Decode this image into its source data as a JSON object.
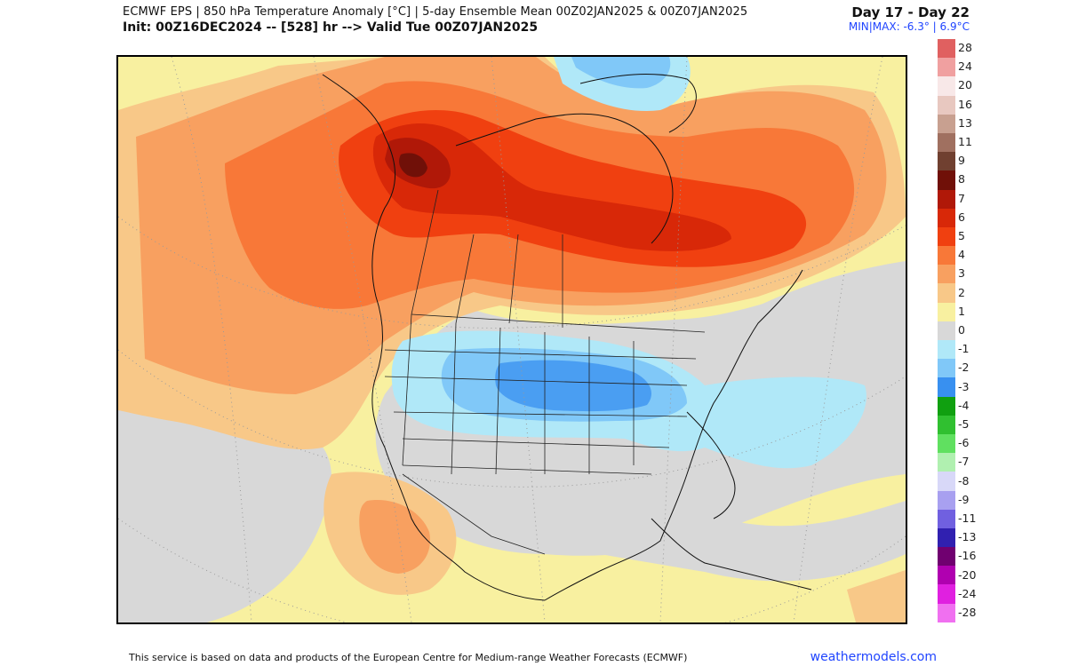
{
  "header": {
    "line1": "ECMWF EPS | 850 hPa Temperature Anomaly [°C] | 5-day Ensemble Mean 00Z02JAN2025 & 00Z07JAN2025",
    "line2": "Init: 00Z16DEC2024 -- [528] hr --> Valid Tue 00Z07JAN2025",
    "day_range": "Day 17 - Day 22",
    "minmax": "MIN|MAX: -6.3° | 6.9°C"
  },
  "map": {
    "region": "North America",
    "anomaly_regions": [
      {
        "name": "warm-anomaly-northern-canada",
        "anomaly_c": 6
      },
      {
        "name": "warm-anomaly-alaska-yukon",
        "anomaly_c": 7
      },
      {
        "name": "cold-anomaly-central-eastern-us",
        "anomaly_c": -3
      },
      {
        "name": "cold-anomaly-greenland",
        "anomaly_c": -2
      },
      {
        "name": "warm-anomaly-northern-mexico",
        "anomaly_c": 2
      }
    ]
  },
  "legend": {
    "items": [
      {
        "label": "28",
        "color": "#e06060"
      },
      {
        "label": "24",
        "color": "#f0a0a0"
      },
      {
        "label": "20",
        "color": "#f8e8e8"
      },
      {
        "label": "16",
        "color": "#e8c8c0"
      },
      {
        "label": "13",
        "color": "#c8a090"
      },
      {
        "label": "11",
        "color": "#a07060"
      },
      {
        "label": "9",
        "color": "#704030"
      },
      {
        "label": "8",
        "color": "#701008"
      },
      {
        "label": "7",
        "color": "#b01808"
      },
      {
        "label": "6",
        "color": "#d82808"
      },
      {
        "label": "5",
        "color": "#f04010"
      },
      {
        "label": "4",
        "color": "#f87838"
      },
      {
        "label": "3",
        "color": "#f8a060"
      },
      {
        "label": "2",
        "color": "#f8c888"
      },
      {
        "label": "1",
        "color": "#f8f0a0"
      },
      {
        "label": "0",
        "color": "#d8d8d8"
      },
      {
        "label": "-1",
        "color": "#b0e8f8"
      },
      {
        "label": "-2",
        "color": "#80c8f8"
      },
      {
        "label": "-3",
        "color": "#3890f0"
      },
      {
        "label": "-4",
        "color": "#10a010"
      },
      {
        "label": "-5",
        "color": "#30c030"
      },
      {
        "label": "-6",
        "color": "#60e060"
      },
      {
        "label": "-7",
        "color": "#b0f0b0"
      },
      {
        "label": "-8",
        "color": "#d8d8f8"
      },
      {
        "label": "-9",
        "color": "#a8a0f0"
      },
      {
        "label": "-11",
        "color": "#7060e0"
      },
      {
        "label": "-13",
        "color": "#3020b0"
      },
      {
        "label": "-16",
        "color": "#700070"
      },
      {
        "label": "-20",
        "color": "#b000b0"
      },
      {
        "label": "-24",
        "color": "#e020e0"
      },
      {
        "label": "-28",
        "color": "#f070f0"
      }
    ]
  },
  "footer": {
    "credit": "This service is based on data and products of the European Centre for Medium-range Weather Forecasts (ECMWF)",
    "site": "weathermodels.com"
  }
}
